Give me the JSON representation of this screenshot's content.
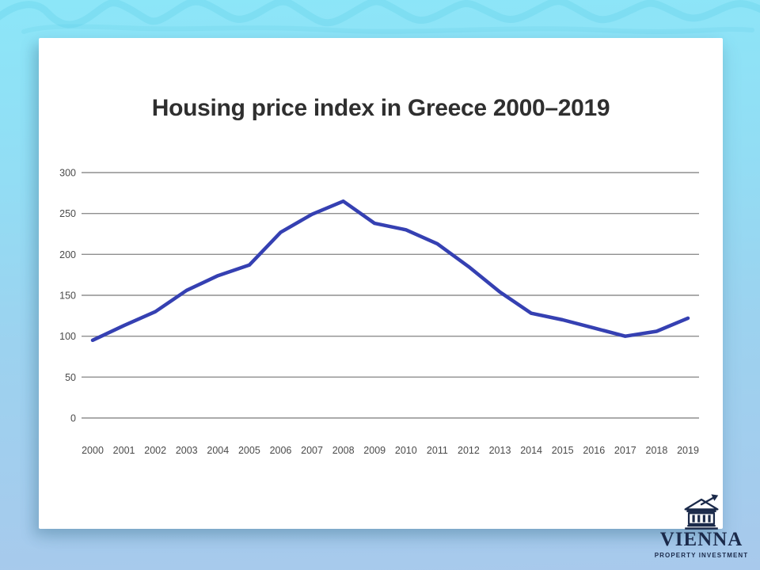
{
  "background": {
    "gradient_top": "#8ce6f8",
    "gradient_bottom": "#a8c9ec",
    "card_color": "#ffffff"
  },
  "chart_data": {
    "type": "line",
    "title": "Housing price index in Greece 2000–2019",
    "x": [
      2000,
      2001,
      2002,
      2003,
      2004,
      2005,
      2006,
      2007,
      2008,
      2009,
      2010,
      2011,
      2012,
      2013,
      2014,
      2015,
      2016,
      2017,
      2018,
      2019
    ],
    "values": [
      95,
      113,
      130,
      156,
      174,
      187,
      227,
      249,
      265,
      238,
      230,
      213,
      185,
      154,
      128,
      120,
      110,
      100,
      106,
      122
    ],
    "xlabel": "",
    "ylabel": "",
    "y_ticks": [
      0,
      50,
      100,
      150,
      200,
      250,
      300
    ],
    "ylim": [
      0,
      300
    ],
    "grid": true,
    "legend_position": "none",
    "line_color": "#3540b2",
    "grid_color": "#8f8f8f",
    "tick_label_color": "#4a4a4a"
  },
  "logo": {
    "brand": "VIENNA",
    "tagline": "PROPERTY INVESTMENT",
    "icon": "bank-growth-arrow-icon",
    "color": "#1b2a4a"
  }
}
